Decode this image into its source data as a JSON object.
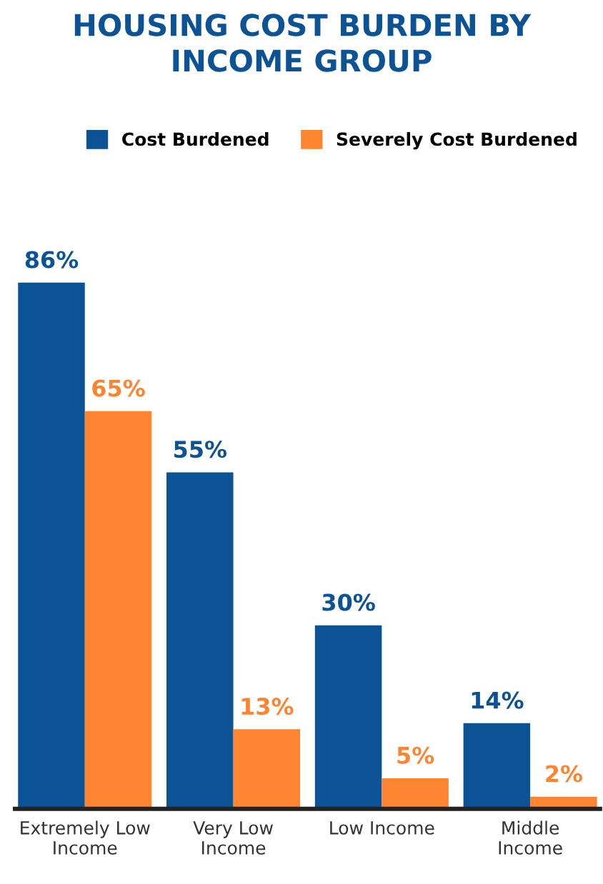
{
  "chart_data": {
    "type": "bar",
    "title": "HOUSING COST BURDEN BY\nINCOME GROUP",
    "categories": [
      "Extremely Low\nIncome",
      "Very Low\nIncome",
      "Low Income",
      "Middle\nIncome"
    ],
    "series": [
      {
        "name": "Cost Burdened",
        "color": "#0b5394",
        "values": [
          86,
          55,
          30,
          14
        ],
        "value_labels": [
          "86%",
          "55%",
          "30%",
          "14%"
        ]
      },
      {
        "name": "Severely Cost Burdened",
        "color": "#fd8431",
        "values": [
          65,
          13,
          5,
          2
        ],
        "value_labels": [
          "65%",
          "13%",
          "5%",
          "2%"
        ]
      }
    ],
    "legend": "top right",
    "grid": false
  }
}
